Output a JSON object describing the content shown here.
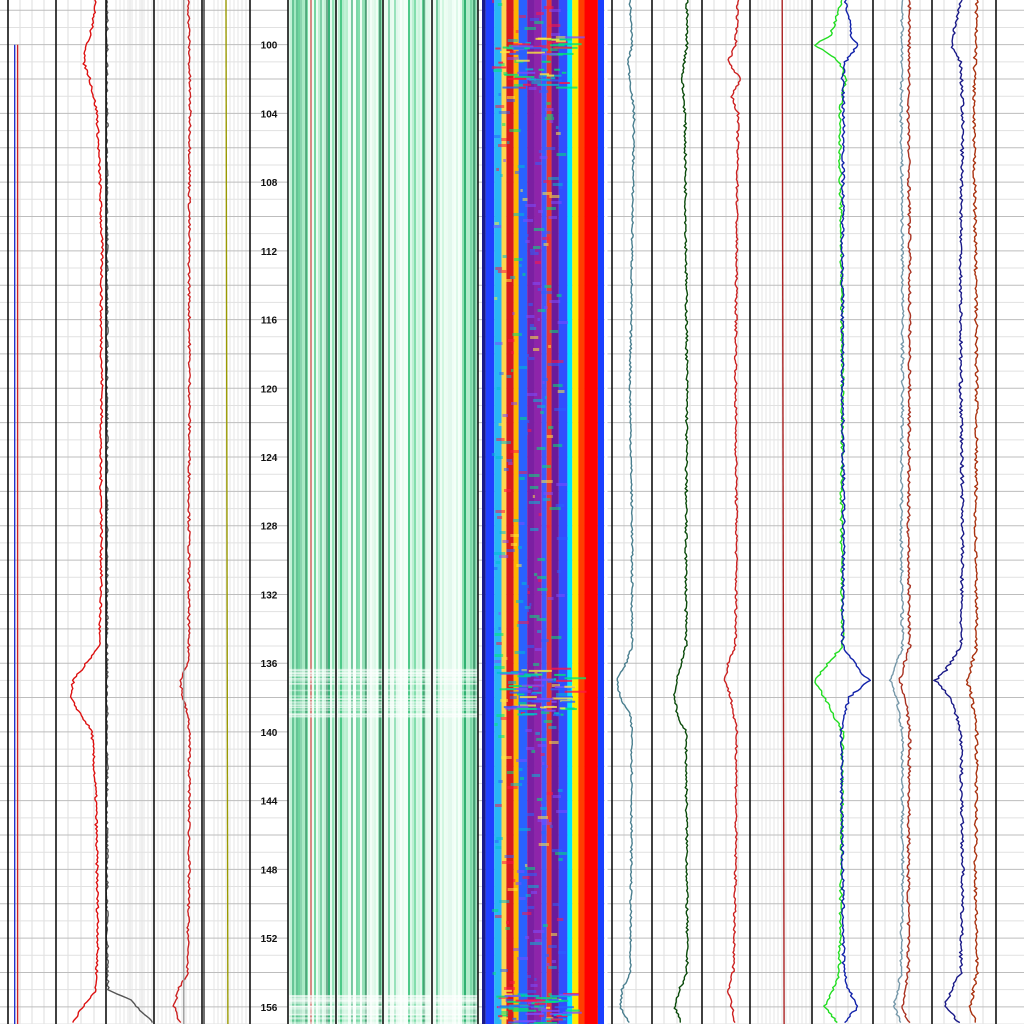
{
  "chart_data": {
    "type": "line",
    "title": "",
    "depth_axis": {
      "range": [
        97.4,
        157.0
      ],
      "ticks": [
        100,
        104,
        108,
        112,
        116,
        120,
        124,
        128,
        132,
        136,
        140,
        144,
        148,
        152,
        156
      ],
      "labels": [
        "100",
        "104",
        "108",
        "112",
        "116",
        "120",
        "124",
        "128",
        "132",
        "136",
        "140",
        "144",
        "148",
        "152",
        "156"
      ],
      "grid": true
    },
    "tracks": [
      {
        "id": "track-1",
        "type": "line",
        "xlim": [
          0,
          1
        ],
        "series": [
          {
            "color": "#2233cc",
            "depth": [
              100,
              157
            ],
            "values": [
              0.14,
              0.14
            ]
          },
          {
            "color": "#cc2222",
            "depth": [
              100,
              157
            ],
            "values": [
              0.2,
              0.2
            ]
          }
        ]
      },
      {
        "id": "track-2",
        "type": "line",
        "xlim": [
          0,
          1
        ],
        "series": [
          {
            "color": "#dd1111",
            "depth": [
              97.4,
              99,
              100,
              101,
              102,
              104,
              108,
              112,
              116,
              120,
              124,
              128,
              132,
              135,
              136,
              137,
              138,
              140,
              144,
              148,
              152,
              155,
              156,
              157
            ],
            "values": [
              0.8,
              0.72,
              0.62,
              0.55,
              0.68,
              0.82,
              0.88,
              0.92,
              0.9,
              0.92,
              0.89,
              0.91,
              0.9,
              0.86,
              0.6,
              0.35,
              0.28,
              0.72,
              0.8,
              0.82,
              0.84,
              0.8,
              0.55,
              0.3
            ]
          }
        ]
      },
      {
        "id": "track-3",
        "type": "line",
        "xlim": [
          0,
          1
        ],
        "series": [
          {
            "color": "#555555",
            "depth": [
              97.4,
              120,
              150,
              155,
              155.6,
              157
            ],
            "values": [
              0.02,
              0.02,
              0.02,
              0.04,
              0.5,
              1.0
            ]
          }
        ]
      },
      {
        "id": "track-4",
        "type": "line",
        "xlim": [
          0,
          1
        ],
        "series": [
          {
            "color": "#cc2222",
            "depth": [
              97.4,
              104,
              112,
              120,
              128,
              136,
              137,
              138,
              139,
              140,
              148,
              154,
              155,
              156,
              157
            ],
            "values": [
              0.72,
              0.75,
              0.73,
              0.74,
              0.73,
              0.72,
              0.55,
              0.6,
              0.7,
              0.74,
              0.73,
              0.7,
              0.5,
              0.42,
              0.55
            ]
          },
          {
            "color": "#999999",
            "depth": [
              97.4,
              157
            ],
            "values": [
              0.62,
              0.62
            ]
          }
        ]
      },
      {
        "id": "track-5",
        "type": "line",
        "xlim": [
          0,
          1
        ],
        "series": [
          {
            "color": "#999900",
            "depth": [
              97.4,
              157
            ],
            "values": [
              0.5,
              0.54
            ]
          }
        ]
      },
      {
        "id": "track-6",
        "type": "heatmap",
        "colormap": "green"
      },
      {
        "id": "track-7",
        "type": "heatmap",
        "colormap": "jet"
      },
      {
        "id": "track-8",
        "type": "line",
        "xlim": [
          0,
          1
        ],
        "series": [
          {
            "color": "#4a7f8f",
            "depth": [
              97.4,
              100,
              101,
              104,
              112,
              120,
              128,
              135,
              136,
              137,
              138,
              139,
              140,
              148,
              154,
              155,
              156,
              157
            ],
            "values": [
              0.45,
              0.5,
              0.4,
              0.55,
              0.5,
              0.45,
              0.5,
              0.5,
              0.35,
              0.12,
              0.2,
              0.45,
              0.5,
              0.48,
              0.45,
              0.25,
              0.2,
              0.45
            ]
          }
        ]
      },
      {
        "id": "track-9",
        "type": "line",
        "xlim": [
          0,
          1
        ],
        "series": [
          {
            "color": "#0a4a0a",
            "depth": [
              97.4,
              100,
              101,
              102,
              104,
              112,
              120,
              128,
              135,
              137,
              138,
              139,
              140,
              148,
              154,
              155,
              156,
              157
            ],
            "values": [
              0.7,
              0.7,
              0.65,
              0.6,
              0.66,
              0.68,
              0.7,
              0.68,
              0.68,
              0.5,
              0.45,
              0.5,
              0.68,
              0.7,
              0.7,
              0.55,
              0.45,
              0.6
            ]
          }
        ]
      },
      {
        "id": "track-10",
        "type": "line",
        "xlim": [
          0,
          1
        ],
        "series": [
          {
            "color": "#cc2222",
            "depth": [
              97.4,
              100,
              101,
              102,
              103,
              104,
              112,
              120,
              128,
              135,
              136,
              137,
              138,
              140,
              148,
              154,
              155,
              156,
              157
            ],
            "values": [
              0.75,
              0.7,
              0.55,
              0.8,
              0.62,
              0.75,
              0.72,
              0.7,
              0.72,
              0.7,
              0.55,
              0.48,
              0.6,
              0.72,
              0.7,
              0.65,
              0.55,
              0.62,
              0.7
            ]
          }
        ]
      },
      {
        "id": "track-11",
        "type": "line",
        "xlim": [
          0,
          1
        ],
        "series": [
          {
            "color": "#aa2222",
            "depth": [
              97.4,
              157
            ],
            "values": [
              0.52,
              0.55
            ]
          }
        ]
      },
      {
        "id": "track-12",
        "type": "line",
        "xlim": [
          0,
          1
        ],
        "series": [
          {
            "color": "#22dd22",
            "depth": [
              97.4,
              99.5,
              100,
              101,
              102,
              104,
              112,
              120,
              128,
              135,
              136.5,
              137,
              138,
              140,
              148,
              154,
              155,
              156,
              157
            ],
            "values": [
              0.5,
              0.3,
              0.05,
              0.45,
              0.55,
              0.45,
              0.48,
              0.5,
              0.48,
              0.5,
              0.15,
              0.05,
              0.2,
              0.5,
              0.48,
              0.45,
              0.35,
              0.2,
              0.45
            ]
          },
          {
            "color": "#1122aa",
            "depth": [
              97.4,
              99.5,
              100,
              101,
              102,
              104,
              112,
              120,
              128,
              135,
              136.5,
              137,
              138,
              140,
              148,
              154,
              155,
              156,
              157
            ],
            "values": [
              0.55,
              0.65,
              0.75,
              0.55,
              0.5,
              0.52,
              0.5,
              0.5,
              0.52,
              0.5,
              0.8,
              0.95,
              0.6,
              0.48,
              0.5,
              0.52,
              0.6,
              0.75,
              0.5
            ]
          }
        ]
      },
      {
        "id": "track-13",
        "type": "line",
        "xlim": [
          0,
          1
        ],
        "series": [
          {
            "color": "#7799aa",
            "depth": [
              97.4,
              104,
              112,
              120,
              128,
              135,
              137,
              138,
              140,
              148,
              154,
              156,
              157
            ],
            "values": [
              0.5,
              0.48,
              0.5,
              0.5,
              0.48,
              0.5,
              0.3,
              0.4,
              0.5,
              0.5,
              0.48,
              0.35,
              0.5
            ]
          },
          {
            "color": "#aa3322",
            "depth": [
              97.4,
              104,
              112,
              120,
              128,
              135,
              137,
              138,
              140,
              148,
              154,
              156,
              157
            ],
            "values": [
              0.62,
              0.6,
              0.62,
              0.62,
              0.6,
              0.62,
              0.45,
              0.55,
              0.62,
              0.6,
              0.6,
              0.5,
              0.62
            ]
          }
        ]
      },
      {
        "id": "track-14",
        "type": "line",
        "xlim": [
          0,
          1
        ],
        "series": [
          {
            "color": "#1a1a88",
            "depth": [
              97.4,
              100,
              101,
              104,
              112,
              120,
              128,
              135,
              136.5,
              137,
              138,
              140,
              148,
              154,
              155,
              156,
              157
            ],
            "values": [
              0.45,
              0.3,
              0.45,
              0.48,
              0.45,
              0.45,
              0.48,
              0.45,
              0.2,
              0.05,
              0.3,
              0.45,
              0.48,
              0.45,
              0.3,
              0.2,
              0.45
            ]
          },
          {
            "color": "#aa3311",
            "depth": [
              97.4,
              104,
              112,
              120,
              128,
              135,
              137,
              138,
              140,
              148,
              154,
              156,
              157
            ],
            "values": [
              0.7,
              0.65,
              0.68,
              0.7,
              0.68,
              0.7,
              0.55,
              0.62,
              0.7,
              0.68,
              0.7,
              0.6,
              0.7
            ]
          }
        ]
      }
    ]
  }
}
